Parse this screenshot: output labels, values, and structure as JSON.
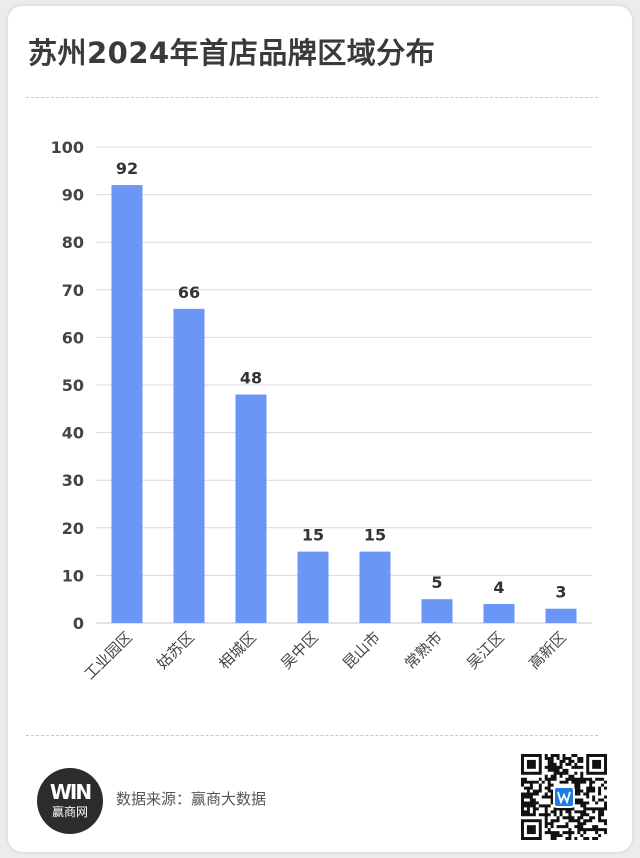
{
  "title": "苏州2024年首店品牌区域分布",
  "source_text": "数据来源：赢商大数据",
  "logo": {
    "mark": "WIN",
    "name": "赢商网"
  },
  "colors": {
    "bar": "#6b96f5",
    "grid": "#d9d9d9",
    "axis_text": "#444444",
    "label_text": "#333333"
  },
  "chart_data": {
    "type": "bar",
    "title": "苏州2024年首店品牌区域分布",
    "categories": [
      "工业园区",
      "姑苏区",
      "相城区",
      "吴中区",
      "昆山市",
      "常熟市",
      "吴江区",
      "高新区"
    ],
    "values": [
      92,
      66,
      48,
      15,
      15,
      5,
      4,
      3
    ],
    "ylim": [
      0,
      100
    ],
    "yticks": [
      0,
      10,
      20,
      30,
      40,
      50,
      60,
      70,
      80,
      90,
      100
    ],
    "grid": true,
    "data_labels": true
  }
}
